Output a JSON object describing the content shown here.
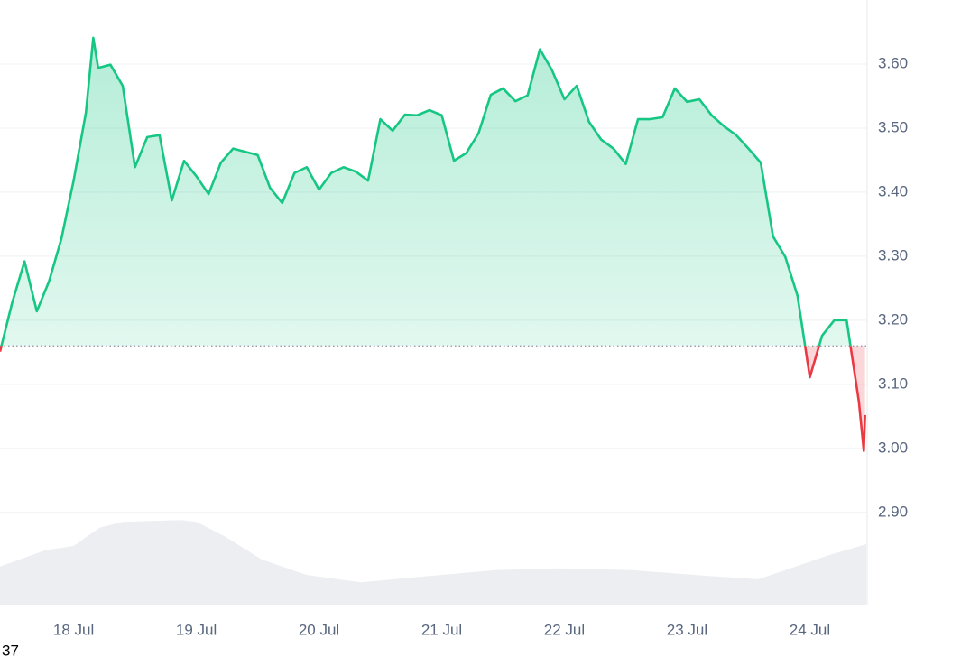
{
  "chart_data": {
    "type": "baseline-line",
    "x": [
      17.4,
      17.5,
      17.6,
      17.7,
      17.8,
      17.9,
      18.0,
      18.1,
      18.16,
      18.2,
      18.3,
      18.4,
      18.5,
      18.6,
      18.7,
      18.8,
      18.9,
      19.0,
      19.1,
      19.2,
      19.3,
      19.4,
      19.5,
      19.6,
      19.7,
      19.8,
      19.9,
      20.0,
      20.1,
      20.2,
      20.3,
      20.4,
      20.5,
      20.6,
      20.7,
      20.8,
      20.9,
      21.0,
      21.1,
      21.2,
      21.3,
      21.4,
      21.5,
      21.6,
      21.7,
      21.8,
      21.9,
      22.0,
      22.1,
      22.2,
      22.3,
      22.4,
      22.5,
      22.6,
      22.7,
      22.8,
      22.9,
      23.0,
      23.1,
      23.2,
      23.3,
      23.4,
      23.5,
      23.6,
      23.7,
      23.8,
      23.9,
      24.0,
      24.1,
      24.2,
      24.3,
      24.4,
      24.44,
      24.45
    ],
    "series": [
      {
        "color": "#16c784",
        "down_color": "#ea3943",
        "values": [
          3.151,
          3.228,
          3.292,
          3.214,
          3.261,
          3.327,
          3.418,
          3.524,
          3.641,
          3.594,
          3.599,
          3.566,
          3.439,
          3.486,
          3.489,
          3.387,
          3.449,
          3.425,
          3.397,
          3.446,
          3.468,
          3.463,
          3.458,
          3.407,
          3.383,
          3.43,
          3.439,
          3.404,
          3.43,
          3.439,
          3.432,
          3.418,
          3.514,
          3.496,
          3.521,
          3.52,
          3.528,
          3.52,
          3.449,
          3.461,
          3.492,
          3.552,
          3.562,
          3.542,
          3.551,
          3.623,
          3.59,
          3.545,
          3.566,
          3.51,
          3.482,
          3.468,
          3.444,
          3.514,
          3.514,
          3.517,
          3.562,
          3.541,
          3.545,
          3.52,
          3.503,
          3.489,
          3.468,
          3.446,
          3.331,
          3.299,
          3.238,
          3.111,
          3.176,
          3.2,
          3.2,
          3.073,
          2.996,
          3.052
        ]
      }
    ],
    "baseline": 3.16,
    "volume": {
      "color": "#eceef1",
      "x": [
        17.4,
        17.77,
        18.0,
        18.21,
        18.4,
        18.87,
        19.0,
        19.24,
        19.53,
        19.9,
        20.34,
        20.93,
        21.44,
        21.96,
        22.55,
        23.14,
        23.58,
        23.8,
        24.16,
        24.46
      ],
      "values": [
        6.3,
        9.0,
        9.7,
        12.7,
        13.7,
        14.0,
        13.7,
        11.2,
        7.5,
        4.9,
        3.7,
        4.8,
        5.7,
        6.0,
        5.7,
        4.8,
        4.2,
        5.7,
        8.2,
        10.0
      ]
    },
    "xlim": [
      17.4,
      24.46
    ],
    "xticks": [
      {
        "value": 18,
        "label": "18 Jul"
      },
      {
        "value": 19,
        "label": "19 Jul"
      },
      {
        "value": 20,
        "label": "20 Jul"
      },
      {
        "value": 21,
        "label": "21 Jul"
      },
      {
        "value": 22,
        "label": "22 Jul"
      },
      {
        "value": 23,
        "label": "23 Jul"
      },
      {
        "value": 24,
        "label": "24 Jul"
      }
    ],
    "ylim": [
      2.756,
      3.7
    ],
    "yticks": [
      {
        "value": 2.9,
        "label": "2.90"
      },
      {
        "value": 3.0,
        "label": "3.00"
      },
      {
        "value": 3.1,
        "label": "3.10"
      },
      {
        "value": 3.2,
        "label": "3.20"
      },
      {
        "value": 3.3,
        "label": "3.30"
      },
      {
        "value": 3.4,
        "label": "3.40"
      },
      {
        "value": 3.5,
        "label": "3.50"
      },
      {
        "value": 3.6,
        "label": "3.60"
      }
    ],
    "y2lim": [
      0,
      100
    ],
    "grid": true,
    "footer_text": "37"
  }
}
